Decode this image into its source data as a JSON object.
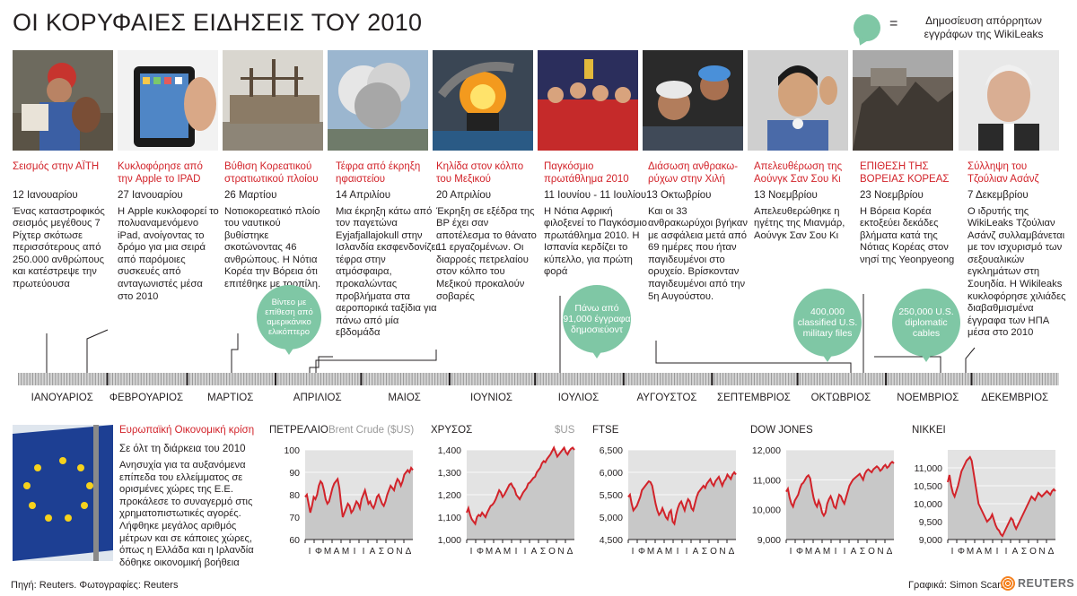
{
  "title": "ΟΙ ΚΟΡΥΦΑΙΕΣ ΕΙΔΗΣΕΙΣ ΤΟΥ 2010",
  "legend": {
    "equals": "=",
    "text": "Δημοσίευση απόρρητων εγγράφων της WikiLeaks",
    "color": "#7fc7a5"
  },
  "accent_color": "#d2232a",
  "events": [
    {
      "headline": "Σεισμός στην ΑΪΤΗ",
      "date": "12 Ιανουαρίου",
      "desc": "Ένας καταστροφικός σεισμός μεγέθους 7 Ρίχτερ σκότωσε περισσότερους από 250.000 ανθρώπους και κατέστρεψε την πρωτεύουσα"
    },
    {
      "headline": "Κυκλοφόρησε από την Apple το IPAD",
      "date": "27 Ιανουαρίου",
      "desc": "Η Apple κυκλοφορεί το πολυαναμενόμενο iPad, ανοίγοντας το δρόμο για μια σειρά από παρόμοιες συσκευές από ανταγωνιστές μέσα στο 2010"
    },
    {
      "headline": "Βύθιση Κορεατικού στρατιωτικού πλοίου",
      "date": "26 Μαρτίου",
      "desc": "Νοτιοκορεατικό πλοίο του ναυτικού βυθίστηκε σκοτώνοντας 46 ανθρώπους. Η Νότια Κορέα την Βόρεια ότι επιτέθηκε με τορπίλη."
    },
    {
      "headline": "Τέφρα από έκρηξη ηφαιστείου",
      "date": "14 Απριλίου",
      "desc": "Μια έκρηξη κάτω από τον παγετώνα Eyjafjallajokull στην Ισλανδία εκσφενδονίζει τέφρα στην ατμόσφαιρα, προκαλώντας προβλήματα στα αεροπορικά ταξίδια για πάνω από μία εβδομάδα"
    },
    {
      "headline": "Κηλίδα στον κόλπο του Μεξικού",
      "date": "20 Απριλίου",
      "desc": "Έκρηξη σε εξέδρα της BP έχει σαν αποτέλεσμα το θάνατο 11 εργαζομένων. Οι διαρροές πετρελαίου στον κόλπο του Μεξικού προκαλούν σοβαρές"
    },
    {
      "headline": "Παγκόσμιο πρωτάθλημα 2010",
      "date": "11 Ιουνίου - 11 Ιουλίου",
      "desc": "Η Νότια Αφρική φιλοξενεί το Παγκόσμιο πρωτάθλημα 2010. Η Ισπανία κερδίζει το κύπελλο, για πρώτη φορά"
    },
    {
      "headline": "Διάσωση ανθρακω-ρύχων στην Χιλή",
      "date": "13 Οκτωβρίου",
      "desc": "Και οι 33 ανθρακωρύχοι βγήκαν με ασφάλεια μετά από 69 ημέρες που ήταν παγιδευμένοι στο ορυχείο. Βρίσκονταν παγιδευμένοι από την 5η Αυγούστου."
    },
    {
      "headline": "Απελευθέρωση της Αούνγκ Σαν Σου Κι",
      "date": "13 Νοεμβρίου",
      "desc": "Απελευθερώθηκε η ηγέτης της Μιανμάρ, Αούνγκ Σαν Σου Κι"
    },
    {
      "headline": "ΕΠΙΘΕΣΗ ΤΗΣ ΒΟΡΕΙΑΣ ΚΟΡΕΑΣ",
      "date": "23 Νοεμβρίου",
      "desc": "Η Βόρεια Κορέα εκτοξεύει δεκάδες βλήματα κατά της Νότιας Κορέας στον νησί της Yeonpyeong"
    },
    {
      "headline": "Σύλληψη του Τζούλιαν Ασάνζ",
      "date": "7 Δεκεμβρίου",
      "desc": "Ο ιδρυτής της WikiLeaks Τζούλιαν Ασάνζ συλλαμβάνεται με τον ισχυρισμό των σεξουαλικών εγκλημάτων στη Σουηδία. Η Wikileaks κυκλοφόρησε χιλιάδες διαβαθμισμένα έγγραφα των ΗΠΑ μέσα στο 2010"
    }
  ],
  "wikileaks": [
    {
      "text": "Βίντεο με επίθεση από αμερικάνικο ελικόπτερο"
    },
    {
      "text": "Πάνω από 91,000 έγγραφα δημοσιεύοντ"
    },
    {
      "text": "400,000 classified U.S. military files"
    },
    {
      "text": "250,000 U.S. diplomatic cables"
    }
  ],
  "months": [
    "ΙΑΝΟΥΑΡΙΟΣ",
    "ΦΕΒΡΟΥΑΡΙΟΣ",
    "ΜΑΡΤΙΟΣ",
    "ΑΠΡΙΛΙΟΣ",
    "ΜΑΙΟΣ",
    "ΙΟΥΝΙΟΣ",
    "ΙΟΥΛΙΟΣ",
    "ΑΥΓΟΥΣΤΟΣ",
    "ΣΕΠΤΕΜΒΡΙΟΣ",
    "ΟΚΤΩΒΡΙΟΣ",
    "ΝΟΕΜΒΡΙΟΣ",
    "ΔΕΚΕΜΒΡΙΟΣ"
  ],
  "euro": {
    "headline": "Ευρωπαϊκή Οικονομική κρίση",
    "date": "Σε όλτ τη διάρκεια του 2010",
    "desc": "Ανησυχία για τα αυξανόμενα επίπεδα του ελλείμματος σε ορισμένες χώρες της Ε.Ε. προκάλεσε το συναγερμό στις χρηματοπιστωτικές αγορές. Λήφθηκε μεγάλος αριθμός μέτρων και σε κάποιες χώρες, όπως η Ελλάδα και η Ιρλανδία δόθηκε οικονομική βοήθεια"
  },
  "chart_data": [
    {
      "type": "line",
      "title": "ΠΕΤΡΕΛΑΙΟ",
      "unit": "Brent Crude ($US)",
      "ylim": [
        60,
        100
      ],
      "yticks": [
        "100",
        "90",
        "80",
        "70",
        "60"
      ],
      "xticks": [
        "Ι",
        "Φ",
        "Μ",
        "Α",
        "Μ",
        "Ι",
        "Ι",
        "Α",
        "Σ",
        "Ο",
        "Ν",
        "Δ"
      ],
      "values": [
        79,
        80,
        76,
        72,
        75,
        79,
        78,
        80,
        84,
        86,
        85,
        82,
        78,
        76,
        77,
        80,
        83,
        85,
        86,
        87,
        83,
        76,
        70,
        72,
        74,
        76,
        75,
        72,
        73,
        75,
        77,
        76,
        74,
        78,
        80,
        82,
        79,
        76,
        77,
        75,
        74,
        76,
        79,
        80,
        78,
        76,
        75,
        77,
        80,
        82,
        84,
        83,
        82,
        85,
        87,
        86,
        84,
        86,
        89,
        90,
        91,
        90,
        92,
        91
      ]
    },
    {
      "type": "line",
      "title": "ΧΡΥΣΟΣ",
      "unit": "$US",
      "ylim": [
        1000,
        1400
      ],
      "yticks": [
        "1,400",
        "1,300",
        "1,200",
        "1,100",
        "1,000"
      ],
      "xticks": [
        "Ι",
        "Φ",
        "Μ",
        "Α",
        "Μ",
        "Ι",
        "Ι",
        "Α",
        "Σ",
        "Ο",
        "Ν",
        "Δ"
      ],
      "values": [
        1120,
        1140,
        1110,
        1090,
        1080,
        1070,
        1100,
        1110,
        1105,
        1120,
        1110,
        1100,
        1120,
        1135,
        1150,
        1155,
        1165,
        1180,
        1200,
        1220,
        1210,
        1190,
        1200,
        1215,
        1230,
        1245,
        1250,
        1235,
        1225,
        1200,
        1190,
        1180,
        1195,
        1210,
        1220,
        1230,
        1250,
        1255,
        1265,
        1275,
        1280,
        1300,
        1310,
        1320,
        1340,
        1350,
        1345,
        1360,
        1370,
        1380,
        1395,
        1410,
        1390,
        1370,
        1380,
        1390,
        1400,
        1410,
        1390,
        1380,
        1395,
        1405,
        1410,
        1400
      ]
    },
    {
      "type": "line",
      "title": "FTSE",
      "unit": "",
      "ylim": [
        4500,
        6500
      ],
      "yticks": [
        "6,500",
        "6,000",
        "5,500",
        "5,000",
        "4,500"
      ],
      "xticks": [
        "Ι",
        "Φ",
        "Μ",
        "Α",
        "Μ",
        "Ι",
        "Ι",
        "Α",
        "Σ",
        "Ο",
        "Ν",
        "Δ"
      ],
      "values": [
        5450,
        5500,
        5300,
        5150,
        5200,
        5250,
        5350,
        5450,
        5600,
        5650,
        5700,
        5750,
        5800,
        5780,
        5700,
        5500,
        5300,
        5150,
        5050,
        5100,
        5200,
        5100,
        5000,
        4950,
        5100,
        5150,
        4900,
        4850,
        5050,
        5200,
        5300,
        5350,
        5250,
        5150,
        5300,
        5400,
        5350,
        5200,
        5150,
        5300,
        5450,
        5550,
        5600,
        5650,
        5700,
        5650,
        5750,
        5800,
        5850,
        5750,
        5700,
        5800,
        5850,
        5900,
        5800,
        5700,
        5800,
        5850,
        5950,
        5900,
        5850,
        5950,
        6000,
        5950
      ]
    },
    {
      "type": "line",
      "title": "DOW JONES",
      "unit": "",
      "ylim": [
        9000,
        12000
      ],
      "yticks": [
        "12,000",
        "11,000",
        "10,000",
        "9,000"
      ],
      "xticks": [
        "Ι",
        "Φ",
        "Μ",
        "Α",
        "Μ",
        "Ι",
        "Ι",
        "Α",
        "Σ",
        "Ο",
        "Ν",
        "Δ"
      ],
      "values": [
        10600,
        10700,
        10400,
        10200,
        10100,
        10300,
        10400,
        10500,
        10700,
        10850,
        10900,
        11000,
        11100,
        11150,
        11050,
        10700,
        10400,
        10200,
        10100,
        10300,
        10150,
        9900,
        9800,
        9900,
        10200,
        10350,
        10450,
        10300,
        10100,
        10050,
        10300,
        10500,
        10450,
        10300,
        10200,
        10400,
        10600,
        10800,
        10900,
        11000,
        11050,
        11100,
        11150,
        11200,
        11100,
        11000,
        11200,
        11300,
        11350,
        11300,
        11250,
        11350,
        11400,
        11450,
        11400,
        11300,
        11350,
        11450,
        11500,
        11400,
        11450,
        11550,
        11600,
        11550
      ]
    },
    {
      "type": "line",
      "title": "NIKKEI",
      "unit": "",
      "ylim": [
        9000,
        11500
      ],
      "yticks": [
        "11,000",
        "10,500",
        "10,000",
        "9,500",
        "9,000"
      ],
      "xticks": [
        "Ι",
        "Φ",
        "Μ",
        "Α",
        "Μ",
        "Ι",
        "Ι",
        "Α",
        "Σ",
        "Ο",
        "Ν",
        "Δ"
      ],
      "values": [
        10600,
        10800,
        10500,
        10300,
        10200,
        10350,
        10500,
        10700,
        10900,
        11000,
        11100,
        11200,
        11250,
        11300,
        11200,
        10900,
        10600,
        10300,
        10000,
        9900,
        9800,
        9700,
        9600,
        9500,
        9550,
        9600,
        9700,
        9550,
        9400,
        9300,
        9250,
        9150,
        9100,
        9200,
        9300,
        9400,
        9500,
        9600,
        9550,
        9400,
        9300,
        9400,
        9500,
        9600,
        9700,
        9800,
        9900,
        10000,
        10100,
        10200,
        10150,
        10100,
        10200,
        10300,
        10250,
        10200,
        10250,
        10300,
        10350,
        10300,
        10250,
        10350,
        10400,
        10350
      ]
    }
  ],
  "footer": {
    "source": "Πηγή: Reuters.  Φωτογραφίες: Reuters",
    "graphics": "Γραφικά: Simon Scarr",
    "brand": "REUTERS"
  }
}
